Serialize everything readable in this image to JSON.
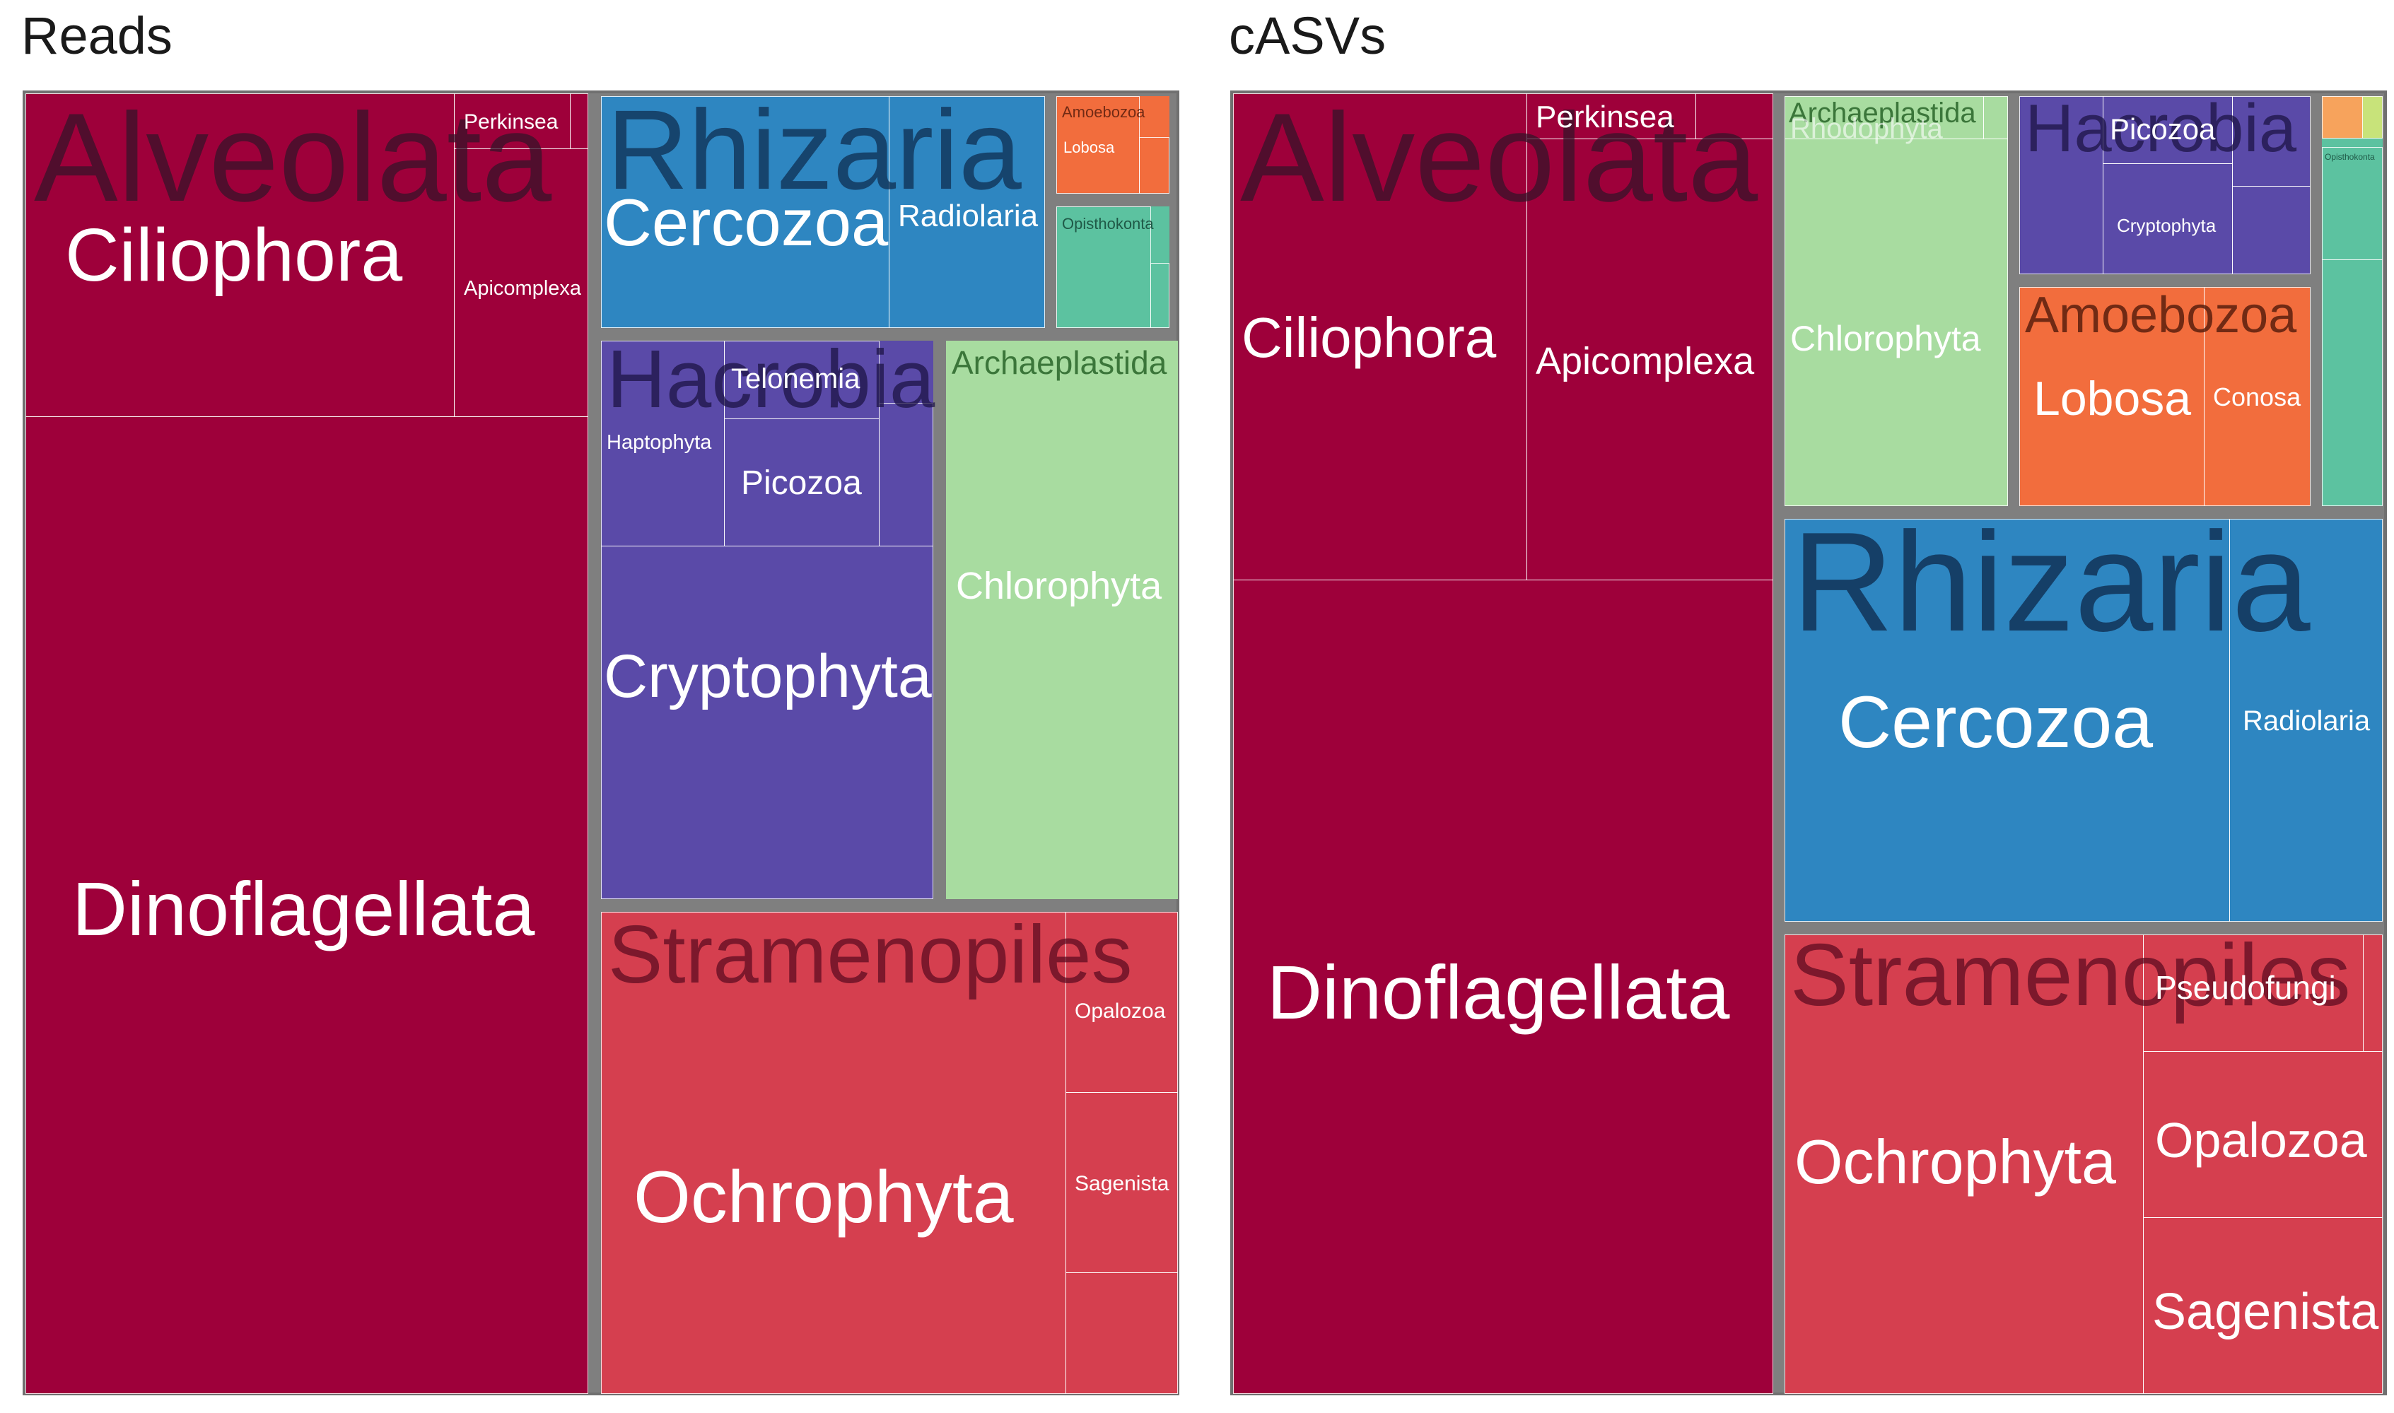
{
  "chart_data": [
    {
      "type": "treemap",
      "title": "Reads",
      "groups": [
        {
          "name": "Alveolata",
          "color": "#9e003a",
          "children": [
            {
              "name": "Dinoflagellata"
            },
            {
              "name": "Ciliophora"
            },
            {
              "name": "Apicomplexa"
            },
            {
              "name": "Perkinsea"
            }
          ]
        },
        {
          "name": "Rhizaria",
          "color": "#2e86c1",
          "children": [
            {
              "name": "Cercozoa"
            },
            {
              "name": "Radiolaria"
            }
          ]
        },
        {
          "name": "Amoebozoa",
          "color": "#f26d3d",
          "children": [
            {
              "name": "Lobosa"
            }
          ]
        },
        {
          "name": "Opisthokonta",
          "color": "#5cc2a0",
          "children": []
        },
        {
          "name": "Hacrobia",
          "color": "#5a4aa8",
          "children": [
            {
              "name": "Cryptophyta"
            },
            {
              "name": "Haptophyta"
            },
            {
              "name": "Picozoa"
            },
            {
              "name": "Telonemia"
            }
          ]
        },
        {
          "name": "Archaeplastida",
          "color": "#a8dca0",
          "children": [
            {
              "name": "Chlorophyta"
            }
          ]
        },
        {
          "name": "Stramenopiles",
          "color": "#d53f4f",
          "children": [
            {
              "name": "Ochrophyta"
            },
            {
              "name": "Sagenista"
            },
            {
              "name": "Opalozoa"
            }
          ]
        }
      ]
    },
    {
      "type": "treemap",
      "title": "cASVs",
      "groups": [
        {
          "name": "Alveolata",
          "color": "#9e003a",
          "children": [
            {
              "name": "Dinoflagellata"
            },
            {
              "name": "Apicomplexa"
            },
            {
              "name": "Ciliophora"
            },
            {
              "name": "Perkinsea"
            }
          ]
        },
        {
          "name": "Archaeplastida",
          "color": "#a8dca0",
          "children": [
            {
              "name": "Chlorophyta"
            },
            {
              "name": "Rhodophyta"
            }
          ]
        },
        {
          "name": "Hacrobia",
          "color": "#5a4aa8",
          "children": [
            {
              "name": "Picozoa"
            },
            {
              "name": "Cryptophyta"
            }
          ]
        },
        {
          "name": "Amoebozoa",
          "color": "#f26d3d",
          "children": [
            {
              "name": "Lobosa"
            },
            {
              "name": "Conosa"
            }
          ]
        },
        {
          "name": "Opisthokonta",
          "color": "#5cc2a0",
          "children": []
        },
        {
          "name": "Rhizaria",
          "color": "#2e86c1",
          "children": [
            {
              "name": "Cercozoa"
            },
            {
              "name": "Radiolaria"
            }
          ]
        },
        {
          "name": "Stramenopiles",
          "color": "#d53f4f",
          "children": [
            {
              "name": "Ochrophyta"
            },
            {
              "name": "Opalozoa"
            },
            {
              "name": "Sagenista"
            },
            {
              "name": "Pseudofungi"
            }
          ]
        }
      ]
    }
  ]
}
